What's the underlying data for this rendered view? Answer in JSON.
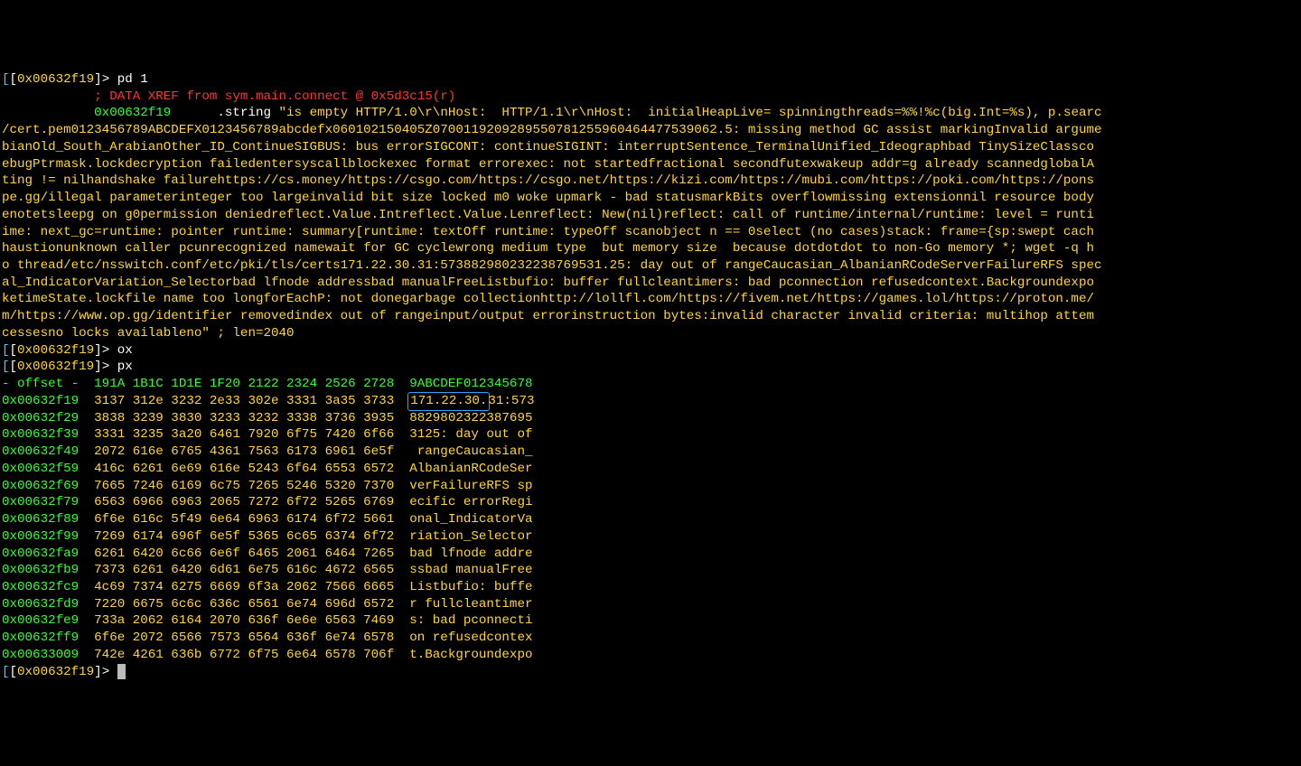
{
  "addr": "0x00632f19",
  "prompts": {
    "pd": "pd 1",
    "ox": "ox",
    "px": "px",
    "last": ""
  },
  "xref_comment": "; DATA XREF from sym.main.connect @ 0x5d3c15(r)",
  "pd_addr": "0x00632f19",
  "pd_op": ".string",
  "pd_str_lines": [
    "\"is empty HTTP/1.0\\r\\nHost:  HTTP/1.1\\r\\nHost:  initialHeapLive= spinningthreads=%%!%c(big.Int=%s), p.searc",
    "/cert.pem0123456789ABCDEFX0123456789abcdefx060102150405Z0700119209289550781255960464477539062.5: missing method GC assist markingInvalid argume",
    "bianOld_South_ArabianOther_ID_ContinueSIGBUS: bus errorSIGCONT: continueSIGINT: interruptSentence_TerminalUnified_Ideographbad TinySizeClassco",
    "ebugPtrmask.lockdecryption failedentersyscallblockexec format errorexec: not startedfractional secondfutexwakeup addr=g already scannedglobalA",
    "ting != nilhandshake failurehttps://cs.money/https://csgo.com/https://csgo.net/https://kizi.com/https://mubi.com/https://poki.com/https://pons",
    "pe.gg/illegal parameterinteger too largeinvalid bit size locked m0 woke upmark - bad statusmarkBits overflowmissing extensionnil resource body",
    "enotetsleepg on g0permission deniedreflect.Value.Intreflect.Value.Lenreflect: New(nil)reflect: call of runtime/internal/runtime: level = runti",
    "ime: next_gc=runtime: pointer runtime: summary[runtime: textOff runtime: typeOff scanobject n == 0select (no cases)stack: frame={sp:swept cach",
    "haustionunknown caller pcunrecognized namewait for GC cyclewrong medium type  but memory size  because dotdotdot to non-Go memory *; wget -q h",
    "o thread/etc/nsswitch.conf/etc/pki/tls/certs171.22.30.31:573882980232238769531.25: day out of rangeCaucasian_AlbanianRCodeServerFailureRFS spec",
    "al_IndicatorVariation_Selectorbad lfnode addressbad manualFreeListbufio: buffer fullcleantimers: bad pconnection refusedcontext.Backgroundexpo",
    "ketimeState.lockfile name too longforEachP: not donegarbage collectionhttp://lollfl.com/https://fivem.net/https://games.lol/https://proton.me/",
    "m/https://www.op.gg/identifier removedindex out of rangeinput/output errorinstruction bytes:invalid character invalid criteria: multihop attem",
    "cessesno locks availableno\" ; len=2040"
  ],
  "hex_header": {
    "label": "- offset -",
    "cols": "  191A 1B1C 1D1E 1F20 2122 2324 2526 2728",
    "asciihdr_left": "  9ABCDEF012",
    "asciihdr_right": "345678"
  },
  "highlight_text": "171.22.30.",
  "hex_rows": [
    {
      "off": "0x00632f19",
      "hex": "  3137 312e 3232 2e33 302e 3331 3a35 3733",
      "ascii_pre": "  ",
      "ascii_post": "31:573",
      "has_highlight": true
    },
    {
      "off": "0x00632f29",
      "hex": "  3838 3239 3830 3233 3232 3338 3736 3935",
      "ascii": "  8829802322387695"
    },
    {
      "off": "0x00632f39",
      "hex": "  3331 3235 3a20 6461 7920 6f75 7420 6f66",
      "ascii": "  3125: day out of"
    },
    {
      "off": "0x00632f49",
      "hex": "  2072 616e 6765 4361 7563 6173 6961 6e5f",
      "ascii": "   rangeCaucasian_"
    },
    {
      "off": "0x00632f59",
      "hex": "  416c 6261 6e69 616e 5243 6f64 6553 6572",
      "ascii": "  AlbanianRCodeSer"
    },
    {
      "off": "0x00632f69",
      "hex": "  7665 7246 6169 6c75 7265 5246 5320 7370",
      "ascii": "  verFailureRFS sp"
    },
    {
      "off": "0x00632f79",
      "hex": "  6563 6966 6963 2065 7272 6f72 5265 6769",
      "ascii": "  ecific errorRegi"
    },
    {
      "off": "0x00632f89",
      "hex": "  6f6e 616c 5f49 6e64 6963 6174 6f72 5661",
      "ascii": "  onal_IndicatorVa"
    },
    {
      "off": "0x00632f99",
      "hex": "  7269 6174 696f 6e5f 5365 6c65 6374 6f72",
      "ascii": "  riation_Selector"
    },
    {
      "off": "0x00632fa9",
      "hex": "  6261 6420 6c66 6e6f 6465 2061 6464 7265",
      "ascii": "  bad lfnode addre"
    },
    {
      "off": "0x00632fb9",
      "hex": "  7373 6261 6420 6d61 6e75 616c 4672 6565",
      "ascii": "  ssbad manualFree"
    },
    {
      "off": "0x00632fc9",
      "hex": "  4c69 7374 6275 6669 6f3a 2062 7566 6665",
      "ascii": "  Listbufio: buffe"
    },
    {
      "off": "0x00632fd9",
      "hex": "  7220 6675 6c6c 636c 6561 6e74 696d 6572",
      "ascii": "  r fullcleantimer"
    },
    {
      "off": "0x00632fe9",
      "hex": "  733a 2062 6164 2070 636f 6e6e 6563 7469",
      "ascii": "  s: bad pconnecti"
    },
    {
      "off": "0x00632ff9",
      "hex": "  6f6e 2072 6566 7573 6564 636f 6e74 6578",
      "ascii": "  on refusedcontex"
    },
    {
      "off": "0x00633009",
      "hex": "  742e 4261 636b 6772 6f75 6e64 6578 706f",
      "ascii": "  t.Backgroundexpo"
    }
  ]
}
